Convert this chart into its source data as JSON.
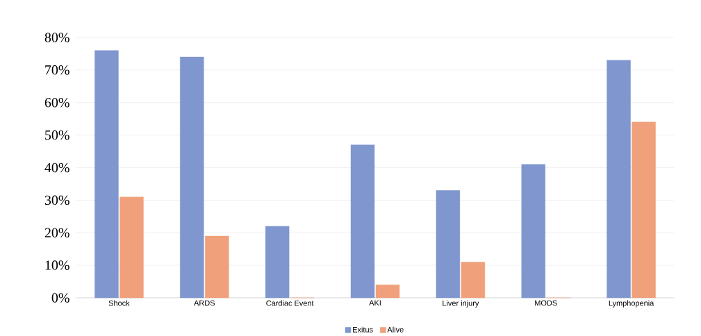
{
  "chart_data": {
    "type": "bar",
    "categories": [
      "Shock",
      "ARDS",
      "Cardiac Event",
      "AKI",
      "Liver injury",
      "MODS",
      "Lymphopenia"
    ],
    "series": [
      {
        "name": "Exitus",
        "color": "#7f96cf",
        "values": [
          76,
          74,
          22,
          47,
          33,
          41,
          73
        ]
      },
      {
        "name": "Alive",
        "color": "#f0a07a",
        "values": [
          31,
          19,
          0,
          4,
          11,
          0,
          54
        ]
      }
    ],
    "ylim": [
      0,
      80
    ],
    "yticks": [
      {
        "value": 0,
        "label": "0%"
      },
      {
        "value": 10,
        "label": "10%"
      },
      {
        "value": 20,
        "label": "20%"
      },
      {
        "value": 30,
        "label": "30%"
      },
      {
        "value": 40,
        "label": "40%"
      },
      {
        "value": 50,
        "label": "50%"
      },
      {
        "value": 60,
        "label": "60%"
      },
      {
        "value": 70,
        "label": "70%"
      },
      {
        "value": 80,
        "label": "80%"
      }
    ],
    "grid": "y",
    "legend": "bottom"
  }
}
